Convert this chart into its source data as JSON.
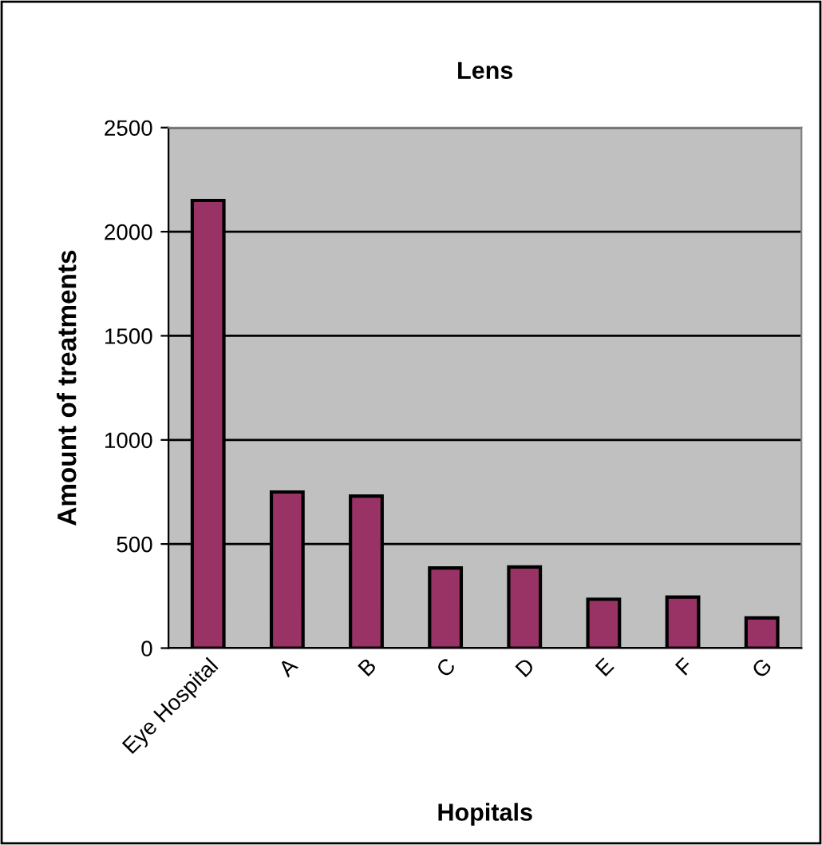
{
  "chart_data": {
    "type": "bar",
    "title": "Lens",
    "xlabel": "Hopitals",
    "ylabel": "Amount of treatments",
    "categories": [
      "Eye Hospital",
      "A",
      "B",
      "C",
      "D",
      "E",
      "F",
      "G"
    ],
    "values": [
      2150,
      750,
      730,
      385,
      390,
      235,
      245,
      145
    ],
    "color": "#993366",
    "ylim": [
      0,
      2500
    ],
    "yticks": [
      0,
      500,
      1000,
      1500,
      2000,
      2500
    ],
    "grid": "y"
  }
}
